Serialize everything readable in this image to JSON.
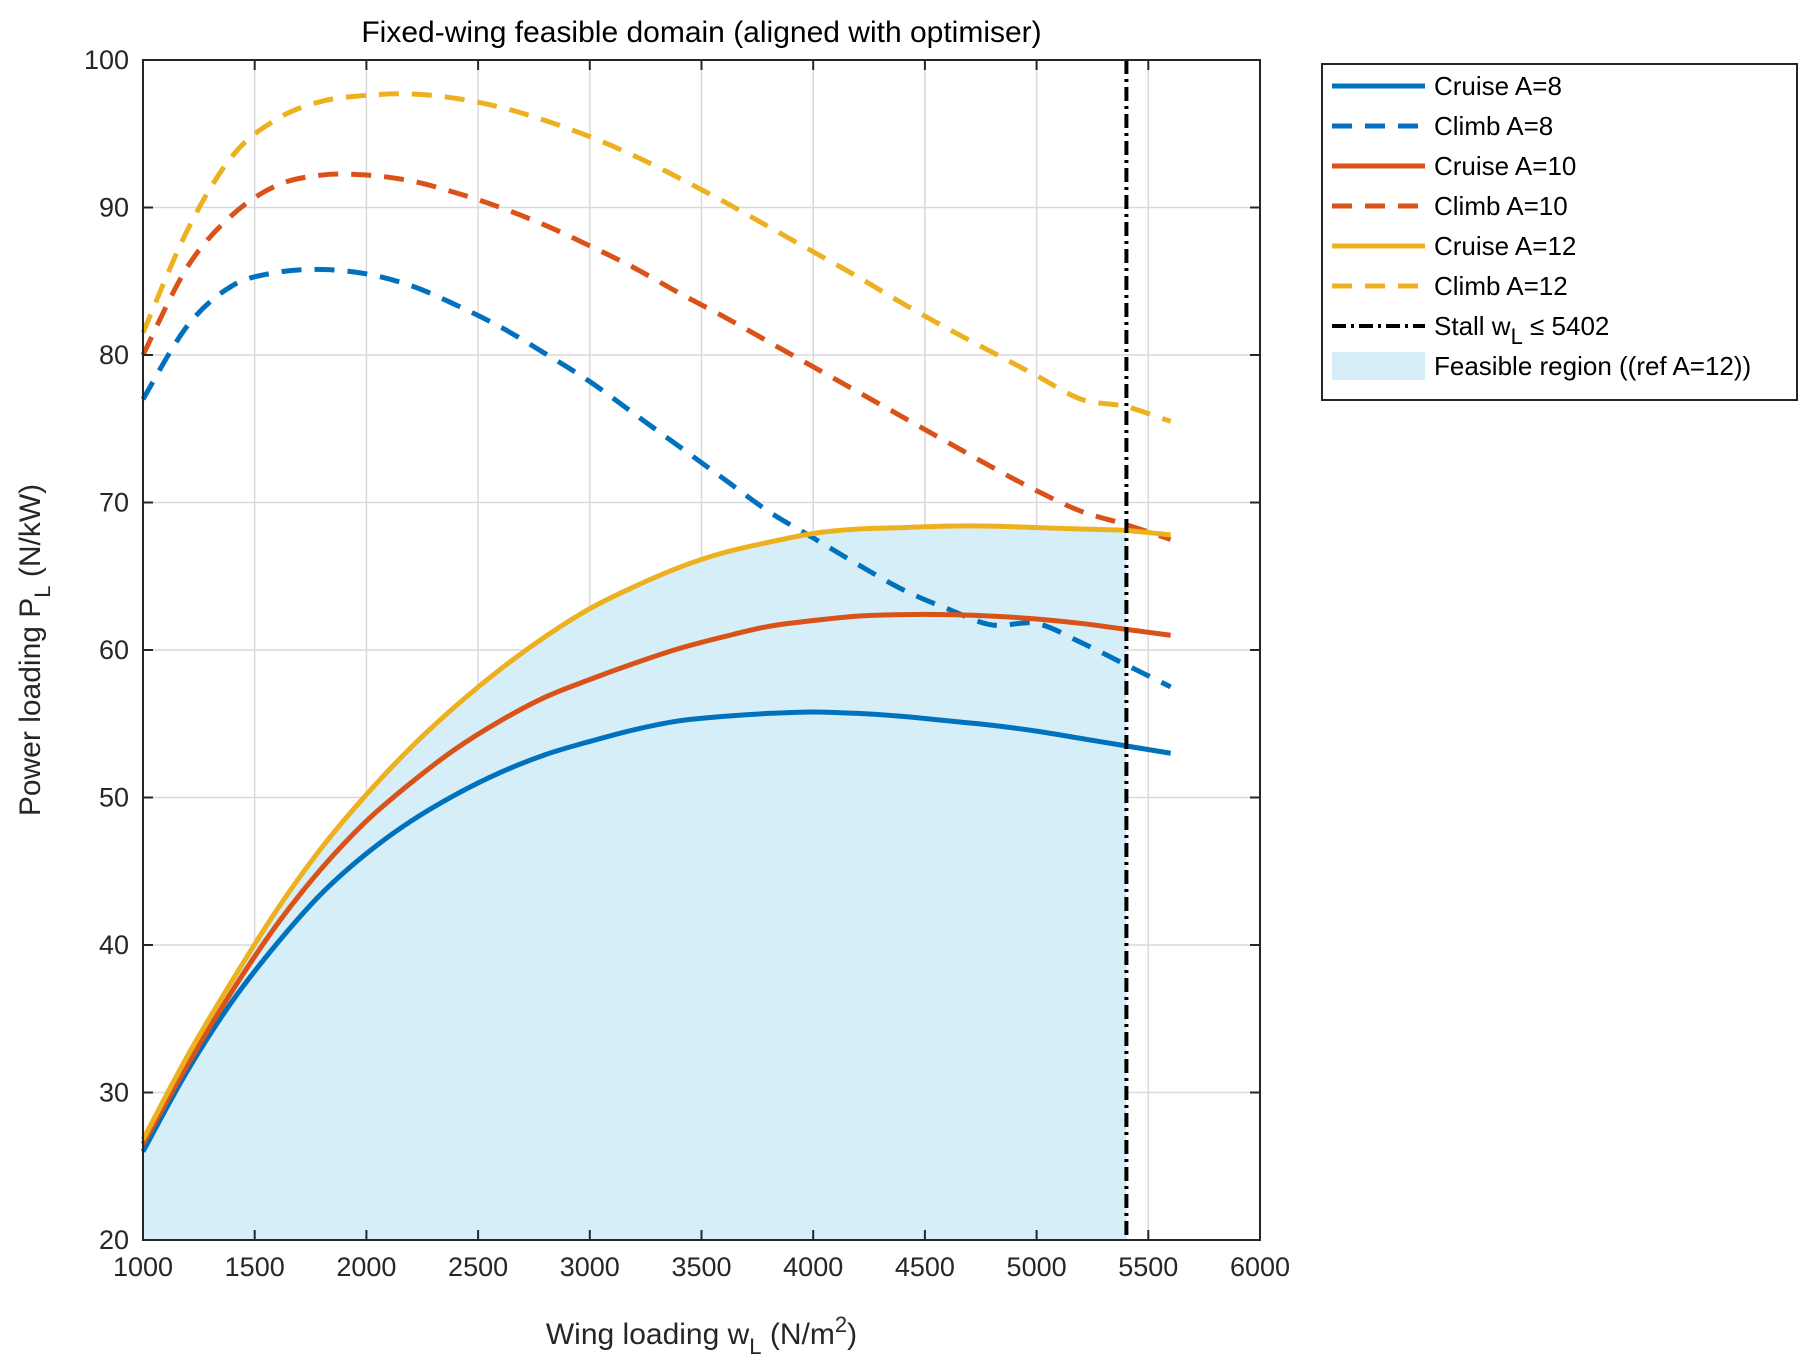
{
  "chart_data": {
    "type": "line",
    "title": "Fixed-wing feasible domain (aligned with optimiser)",
    "xlabel": {
      "main": "Wing loading  w",
      "sub": "L",
      "unit": "  (N/m",
      "sup": "2",
      "close": ")"
    },
    "ylabel": {
      "main": "Power loading  P",
      "sub": "L",
      "unit": "  (N/kW)"
    },
    "xlim": [
      1000,
      6000
    ],
    "ylim": [
      20,
      100
    ],
    "xticks": [
      1000,
      1500,
      2000,
      2500,
      3000,
      3500,
      4000,
      4500,
      5000,
      5500,
      6000
    ],
    "yticks": [
      20,
      30,
      40,
      50,
      60,
      70,
      80,
      90,
      100
    ],
    "grid": true,
    "x": [
      1000,
      1200,
      1400,
      1600,
      1800,
      2000,
      2200,
      2400,
      2600,
      2800,
      3000,
      3200,
      3400,
      3600,
      3800,
      4000,
      4200,
      4400,
      4600,
      4800,
      5000,
      5200,
      5400,
      5600
    ],
    "series": [
      {
        "name": "Cruise A=8",
        "style": "solid",
        "color": "#0072BD",
        "values": [
          26.0,
          31.5,
          36.2,
          40.1,
          43.5,
          46.2,
          48.4,
          50.2,
          51.7,
          52.9,
          53.8,
          54.6,
          55.2,
          55.5,
          55.7,
          55.8,
          55.7,
          55.5,
          55.2,
          54.9,
          54.5,
          54.0,
          53.5,
          53.0
        ]
      },
      {
        "name": "Climb A=8",
        "style": "dashed",
        "color": "#0072BD",
        "values": [
          77.0,
          82.0,
          84.7,
          85.6,
          85.8,
          85.5,
          84.7,
          83.4,
          81.9,
          80.1,
          78.2,
          76.0,
          73.8,
          71.6,
          69.4,
          67.6,
          65.8,
          64.1,
          62.8,
          61.7,
          61.8,
          60.5,
          59.0,
          57.5
        ]
      },
      {
        "name": "Cruise A=10",
        "style": "solid",
        "color": "#D95319",
        "values": [
          26.5,
          31.9,
          36.9,
          41.4,
          45.2,
          48.4,
          51.0,
          53.3,
          55.2,
          56.8,
          58.0,
          59.1,
          60.1,
          60.9,
          61.6,
          62.0,
          62.3,
          62.4,
          62.4,
          62.3,
          62.1,
          61.8,
          61.4,
          61.0
        ]
      },
      {
        "name": "Climb A=10",
        "style": "dashed",
        "color": "#D95319",
        "values": [
          80.0,
          86.0,
          89.5,
          91.5,
          92.2,
          92.2,
          91.8,
          91.0,
          90.0,
          88.8,
          87.4,
          85.9,
          84.2,
          82.6,
          80.9,
          79.2,
          77.5,
          75.8,
          74.1,
          72.4,
          70.8,
          69.4,
          68.5,
          67.5
        ]
      },
      {
        "name": "Cruise A=12",
        "style": "solid",
        "color": "#EDB120",
        "values": [
          26.8,
          32.5,
          37.6,
          42.4,
          46.6,
          50.2,
          53.4,
          56.2,
          58.7,
          60.9,
          62.8,
          64.3,
          65.6,
          66.6,
          67.3,
          67.9,
          68.2,
          68.3,
          68.4,
          68.4,
          68.3,
          68.2,
          68.1,
          67.8
        ]
      },
      {
        "name": "Climb A=12",
        "style": "dashed",
        "color": "#EDB120",
        "values": [
          81.5,
          88.5,
          93.5,
          96.0,
          97.2,
          97.6,
          97.7,
          97.4,
          96.8,
          95.9,
          94.8,
          93.5,
          92.0,
          90.4,
          88.7,
          87.0,
          85.3,
          83.5,
          81.8,
          80.2,
          78.6,
          77.0,
          76.5,
          75.5
        ]
      }
    ],
    "stall_line": {
      "name": "Stall  w",
      "sub": "L",
      "rel": " ≤ 5402",
      "x": 5402,
      "color": "#000000",
      "style": "dashdot"
    },
    "feasible_region": {
      "name": "Feasible region ((ref A=12))",
      "color": "#D6EEF8",
      "ref_series": "Cruise A=12",
      "x_max": 5402
    },
    "legend": {
      "placement": "outside-right-top"
    }
  }
}
